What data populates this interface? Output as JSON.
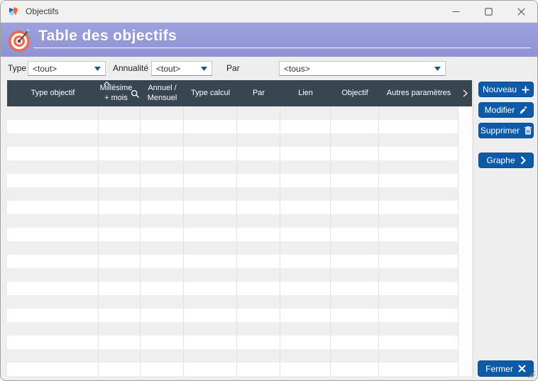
{
  "window": {
    "title": "Objectifs",
    "controls": {
      "minimize": "minimize",
      "maximize": "maximize",
      "close": "close"
    }
  },
  "banner": {
    "title": "Table des objectifs",
    "icon": "target-bullseye-with-dart"
  },
  "filters": {
    "type": {
      "label": "Type",
      "value": "<tout>"
    },
    "annualite": {
      "label": "Annualité",
      "value": "<tout>"
    },
    "par": {
      "label": "Par",
      "value": "<tous>"
    }
  },
  "table": {
    "columns": [
      "Type objectif",
      "Millésime + mois",
      "Annuel / Mensuel",
      "Type calcul",
      "Par",
      "Lien",
      "Objectif",
      "Autres paramètres"
    ],
    "sorted_column": "Millésime + mois",
    "sort_direction": "ascending",
    "rows": [],
    "visible_empty_rows": 20
  },
  "buttons": {
    "nouveau": "Nouveau",
    "modifier": "Modifier",
    "supprimer": "Supprimer",
    "graphe": "Graphe",
    "fermer": "Fermer"
  },
  "icons": {
    "nouveau": "plus",
    "modifier": "pencil",
    "supprimer": "trash",
    "graphe": "chevron-right",
    "fermer": "x",
    "millesime_header": "sort-up-caret, magnifier",
    "header_overflow": "chevron-right",
    "filter_dropdown": "chevron-down"
  },
  "colors": {
    "banner_purple": "#979bd8",
    "table_header_dark": "#374650",
    "button_blue": "#0d5aa7",
    "row_stripe": "#efefef",
    "dropdown_arrow_blue": "#135a83"
  }
}
